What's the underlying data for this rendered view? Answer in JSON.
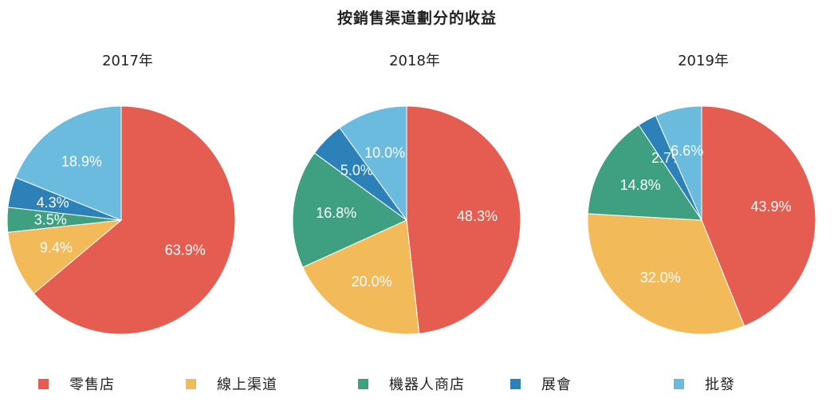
{
  "title": "按銷售渠道劃分的收益",
  "legend": [
    {
      "name": "零售店",
      "color": "#E45D50"
    },
    {
      "name": "線上渠道",
      "color": "#F3BA5A"
    },
    {
      "name": "機器人商店",
      "color": "#3FA081"
    },
    {
      "name": "展會",
      "color": "#2C82B8"
    },
    {
      "name": "批發",
      "color": "#6ABBDE"
    }
  ],
  "chart_data": [
    {
      "type": "pie",
      "title": "2017年",
      "labels": [
        "零售店",
        "線上渠道",
        "機器人商店",
        "展會",
        "批發"
      ],
      "values": [
        63.9,
        9.4,
        3.5,
        4.3,
        18.9
      ],
      "value_labels": [
        "63.9%",
        "9.4%",
        "3.5%",
        "4.3%",
        "18.9%"
      ]
    },
    {
      "type": "pie",
      "title": "2018年",
      "labels": [
        "零售店",
        "線上渠道",
        "機器人商店",
        "展會",
        "批發"
      ],
      "values": [
        48.3,
        20.0,
        16.8,
        5.0,
        10.0
      ],
      "value_labels": [
        "48.3%",
        "20.0%",
        "16.8%",
        "5.0%",
        "10.0%"
      ]
    },
    {
      "type": "pie",
      "title": "2019年",
      "labels": [
        "零售店",
        "線上渠道",
        "機器人商店",
        "展會",
        "批發"
      ],
      "values": [
        43.9,
        32.0,
        14.8,
        2.7,
        6.6
      ],
      "value_labels": [
        "43.9%",
        "32.0%",
        "14.8%",
        "2.7%",
        "6.6%"
      ]
    }
  ]
}
